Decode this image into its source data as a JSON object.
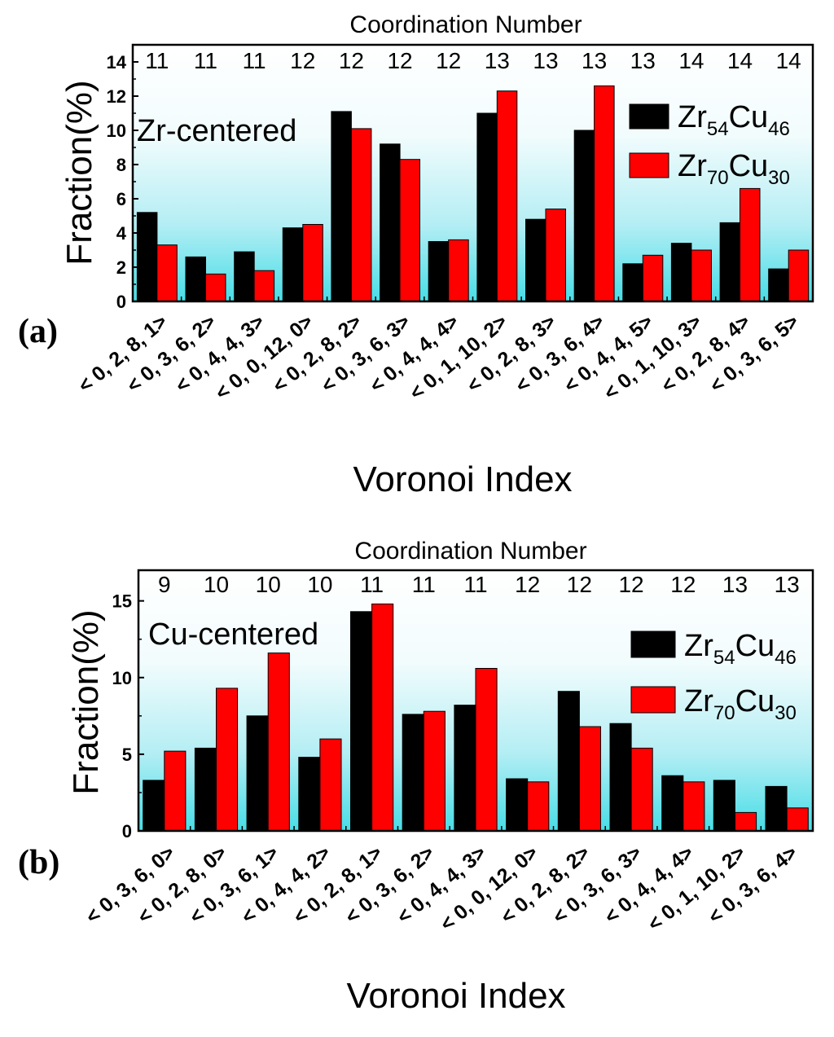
{
  "chart_data": [
    {
      "type": "bar",
      "panel_label": "(a)",
      "top_axis_title": "Coordination Number",
      "coordination_numbers": [
        "11",
        "11",
        "11",
        "12",
        "12",
        "12",
        "12",
        "13",
        "13",
        "13",
        "13",
        "14",
        "14",
        "14"
      ],
      "center_label": "Zr-centered",
      "categories": [
        "< 0, 2, 8, 1>",
        "< 0, 3, 6, 2>",
        "< 0, 4, 4, 3>",
        "< 0, 0, 12, 0>",
        "< 0, 2, 8, 2>",
        "< 0, 3, 6, 3>",
        "< 0, 4, 4, 4>",
        "< 0, 1, 10, 2>",
        "< 0, 2, 8, 3>",
        "< 0, 3, 6, 4>",
        "< 0, 4, 4, 5>",
        "< 0, 1, 10, 3>",
        "< 0, 2, 8, 4>",
        "< 0, 3, 6, 5>"
      ],
      "series": [
        {
          "name": "Zr54Cu46",
          "base": "Zr",
          "sub1": "54",
          "mid": "Cu",
          "sub2": "46",
          "color": "#000000",
          "values": [
            5.2,
            2.6,
            2.9,
            4.3,
            11.1,
            9.2,
            3.5,
            11.0,
            4.8,
            10.0,
            2.2,
            3.4,
            4.6,
            1.9
          ]
        },
        {
          "name": "Zr70Cu30",
          "base": "Zr",
          "sub1": "70",
          "mid": "Cu",
          "sub2": "30",
          "color": "#ff0000",
          "values": [
            3.3,
            1.6,
            1.8,
            4.5,
            10.1,
            8.3,
            3.6,
            12.3,
            5.4,
            12.6,
            2.7,
            3.0,
            6.6,
            3.0
          ]
        }
      ],
      "ylabel": "Fraction(%)",
      "xlabel": "Voronoi Index",
      "ylim": [
        0,
        15
      ],
      "yticks": [
        "0",
        "2",
        "4",
        "6",
        "8",
        "10",
        "12",
        "14"
      ],
      "ytick_values": [
        0,
        2,
        4,
        6,
        8,
        10,
        12,
        14
      ]
    },
    {
      "type": "bar",
      "panel_label": "(b)",
      "top_axis_title": "Coordination Number",
      "coordination_numbers": [
        "9",
        "10",
        "10",
        "10",
        "11",
        "11",
        "11",
        "12",
        "12",
        "12",
        "12",
        "13",
        "13"
      ],
      "center_label": "Cu-centered",
      "categories": [
        "< 0, 3, 6, 0>",
        "< 0, 2, 8, 0>",
        "< 0, 3, 6, 1>",
        "< 0, 4, 4, 2>",
        "< 0, 2, 8, 1>",
        "< 0, 3, 6, 2>",
        "< 0, 4, 4, 3>",
        "< 0, 0, 12, 0>",
        "< 0, 2, 8, 2>",
        "< 0, 3, 6, 3>",
        "< 0, 4, 4, 4>",
        "< 0, 1, 10, 2>",
        "< 0, 3, 6, 4>"
      ],
      "series": [
        {
          "name": "Zr54Cu46",
          "base": "Zr",
          "sub1": "54",
          "mid": "Cu",
          "sub2": "46",
          "color": "#000000",
          "values": [
            3.3,
            5.4,
            7.5,
            4.8,
            14.3,
            7.6,
            8.2,
            3.4,
            9.1,
            7.0,
            3.6,
            3.3,
            2.9
          ]
        },
        {
          "name": "Zr70Cu30",
          "base": "Zr",
          "sub1": "70",
          "mid": "Cu",
          "sub2": "30",
          "color": "#ff0000",
          "values": [
            5.2,
            9.3,
            11.6,
            6.0,
            14.8,
            7.8,
            10.6,
            3.2,
            6.8,
            5.4,
            3.2,
            1.2,
            1.5
          ]
        }
      ],
      "ylabel": "Fraction(%)",
      "xlabel": "Voronoi Index",
      "ylim": [
        0,
        17
      ],
      "yticks": [
        "0",
        "5",
        "10",
        "15"
      ],
      "ytick_values": [
        0,
        5,
        10,
        15
      ]
    }
  ]
}
